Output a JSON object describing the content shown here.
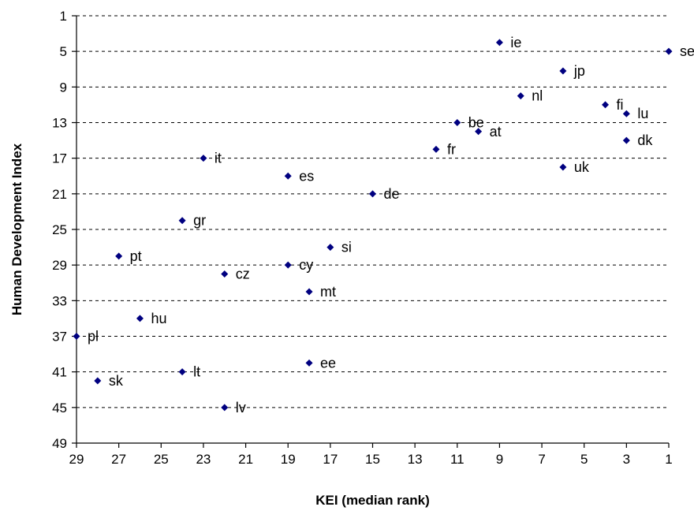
{
  "chart_data": {
    "type": "scatter",
    "title": "",
    "xlabel": "KEI (median rank)",
    "ylabel": "Human Development Index",
    "xlim": [
      29,
      1
    ],
    "ylim": [
      1,
      49
    ],
    "x_reversed": true,
    "y_reversed": true,
    "x_ticks": [
      29,
      27,
      25,
      23,
      21,
      19,
      17,
      15,
      13,
      11,
      9,
      7,
      5,
      3,
      1
    ],
    "y_ticks": [
      1,
      5,
      9,
      13,
      17,
      21,
      25,
      29,
      33,
      37,
      41,
      45,
      49
    ],
    "grid": "horizontal dashed",
    "marker": "diamond",
    "marker_color": "#000080",
    "points": [
      {
        "label": "ie",
        "x": 9,
        "y": 4
      },
      {
        "label": "se",
        "x": 1,
        "y": 5
      },
      {
        "label": "jp",
        "x": 6,
        "y": 7.2
      },
      {
        "label": "nl",
        "x": 8,
        "y": 10
      },
      {
        "label": "fi",
        "x": 4,
        "y": 11
      },
      {
        "label": "lu",
        "x": 3,
        "y": 12
      },
      {
        "label": "be",
        "x": 11,
        "y": 13
      },
      {
        "label": "at",
        "x": 10,
        "y": 14
      },
      {
        "label": "dk",
        "x": 3,
        "y": 15
      },
      {
        "label": "fr",
        "x": 12,
        "y": 16
      },
      {
        "label": "it",
        "x": 23,
        "y": 17
      },
      {
        "label": "uk",
        "x": 6,
        "y": 18
      },
      {
        "label": "es",
        "x": 19,
        "y": 19
      },
      {
        "label": "de",
        "x": 15,
        "y": 21
      },
      {
        "label": "gr",
        "x": 24,
        "y": 24
      },
      {
        "label": "si",
        "x": 17,
        "y": 27
      },
      {
        "label": "pt",
        "x": 27,
        "y": 28
      },
      {
        "label": "cy",
        "x": 19,
        "y": 29
      },
      {
        "label": "cz",
        "x": 22,
        "y": 30
      },
      {
        "label": "mt",
        "x": 18,
        "y": 32
      },
      {
        "label": "hu",
        "x": 26,
        "y": 35
      },
      {
        "label": "pl",
        "x": 29,
        "y": 37
      },
      {
        "label": "ee",
        "x": 18,
        "y": 40
      },
      {
        "label": "lt",
        "x": 24,
        "y": 41
      },
      {
        "label": "sk",
        "x": 28,
        "y": 42
      },
      {
        "label": "lv",
        "x": 22,
        "y": 45
      }
    ]
  }
}
